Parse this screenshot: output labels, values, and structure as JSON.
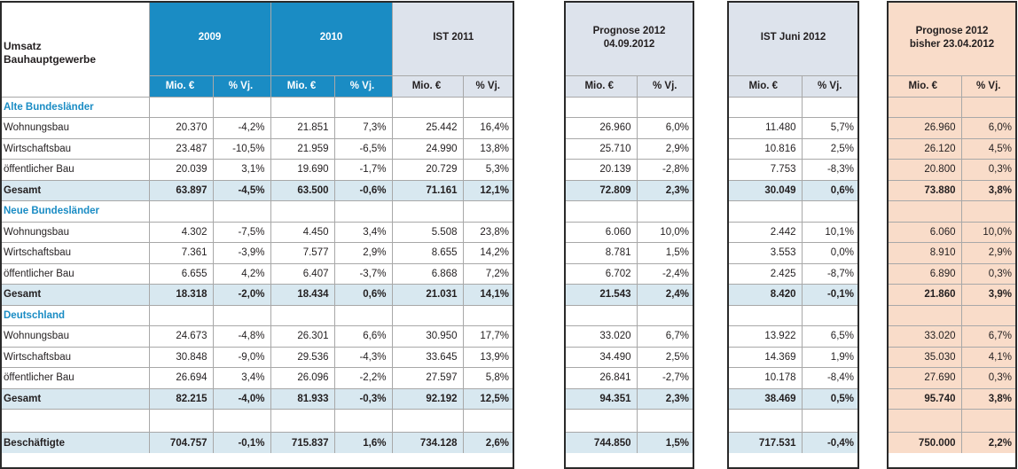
{
  "header": {
    "title_line1": "Umsatz",
    "title_line2": "Bauhauptgewerbe",
    "col_2009": "2009",
    "col_2010": "2010",
    "col_ist2011": "IST 2011",
    "col_prog2012": "Prognose 2012 04.09.2012",
    "col_istjuni": "IST Juni 2012",
    "col_progbisher": "Prognose 2012 bisher 23.04.2012",
    "unit_mio": "Mio. €",
    "unit_vj": "% Vj."
  },
  "sections": [
    {
      "name": "Alte Bundesländer",
      "rows": [
        {
          "label": "Wohnungsbau",
          "v": [
            "20.370",
            "-4,2%",
            "21.851",
            "7,3%",
            "25.442",
            "16,4%",
            "26.960",
            "6,0%",
            "11.480",
            "5,7%",
            "26.960",
            "6,0%"
          ]
        },
        {
          "label": "Wirtschaftsbau",
          "v": [
            "23.487",
            "-10,5%",
            "21.959",
            "-6,5%",
            "24.990",
            "13,8%",
            "25.710",
            "2,9%",
            "10.816",
            "2,5%",
            "26.120",
            "4,5%"
          ]
        },
        {
          "label": "öffentlicher Bau",
          "v": [
            "20.039",
            "3,1%",
            "19.690",
            "-1,7%",
            "20.729",
            "5,3%",
            "20.139",
            "-2,8%",
            "7.753",
            "-8,3%",
            "20.800",
            "0,3%"
          ]
        }
      ],
      "total": {
        "label": "Gesamt",
        "v": [
          "63.897",
          "-4,5%",
          "63.500",
          "-0,6%",
          "71.161",
          "12,1%",
          "72.809",
          "2,3%",
          "30.049",
          "0,6%",
          "73.880",
          "3,8%"
        ]
      }
    },
    {
      "name": "Neue Bundesländer",
      "rows": [
        {
          "label": "Wohnungsbau",
          "v": [
            "4.302",
            "-7,5%",
            "4.450",
            "3,4%",
            "5.508",
            "23,8%",
            "6.060",
            "10,0%",
            "2.442",
            "10,1%",
            "6.060",
            "10,0%"
          ]
        },
        {
          "label": "Wirtschaftsbau",
          "v": [
            "7.361",
            "-3,9%",
            "7.577",
            "2,9%",
            "8.655",
            "14,2%",
            "8.781",
            "1,5%",
            "3.553",
            "0,0%",
            "8.910",
            "2,9%"
          ]
        },
        {
          "label": "öffentlicher Bau",
          "v": [
            "6.655",
            "4,2%",
            "6.407",
            "-3,7%",
            "6.868",
            "7,2%",
            "6.702",
            "-2,4%",
            "2.425",
            "-8,7%",
            "6.890",
            "0,3%"
          ]
        }
      ],
      "total": {
        "label": "Gesamt",
        "v": [
          "18.318",
          "-2,0%",
          "18.434",
          "0,6%",
          "21.031",
          "14,1%",
          "21.543",
          "2,4%",
          "8.420",
          "-0,1%",
          "21.860",
          "3,9%"
        ]
      }
    },
    {
      "name": "Deutschland",
      "rows": [
        {
          "label": "Wohnungsbau",
          "v": [
            "24.673",
            "-4,8%",
            "26.301",
            "6,6%",
            "30.950",
            "17,7%",
            "33.020",
            "6,7%",
            "13.922",
            "6,5%",
            "33.020",
            "6,7%"
          ]
        },
        {
          "label": "Wirtschaftsbau",
          "v": [
            "30.848",
            "-9,0%",
            "29.536",
            "-4,3%",
            "33.645",
            "13,9%",
            "34.490",
            "2,5%",
            "14.369",
            "1,9%",
            "35.030",
            "4,1%"
          ]
        },
        {
          "label": "öffentlicher Bau",
          "v": [
            "26.694",
            "3,4%",
            "26.096",
            "-2,2%",
            "27.597",
            "5,8%",
            "26.841",
            "-2,7%",
            "10.178",
            "-8,4%",
            "27.690",
            "0,3%"
          ]
        }
      ],
      "total": {
        "label": "Gesamt",
        "v": [
          "82.215",
          "-4,0%",
          "81.933",
          "-0,3%",
          "92.192",
          "12,5%",
          "94.351",
          "2,3%",
          "38.469",
          "0,5%",
          "95.740",
          "3,8%"
        ]
      }
    }
  ],
  "employees": {
    "label": "Beschäftigte",
    "v": [
      "704.757",
      "-0,1%",
      "715.837",
      "1,6%",
      "734.128",
      "2,6%",
      "744.850",
      "1,5%",
      "717.531",
      "-0,4%",
      "750.000",
      "2,2%"
    ]
  },
  "colors": {
    "accent_blue": "#1a8cc4",
    "header_grey": "#dde3ec",
    "peach": "#f9dcc9",
    "total_shade": "#d8e8f0"
  }
}
